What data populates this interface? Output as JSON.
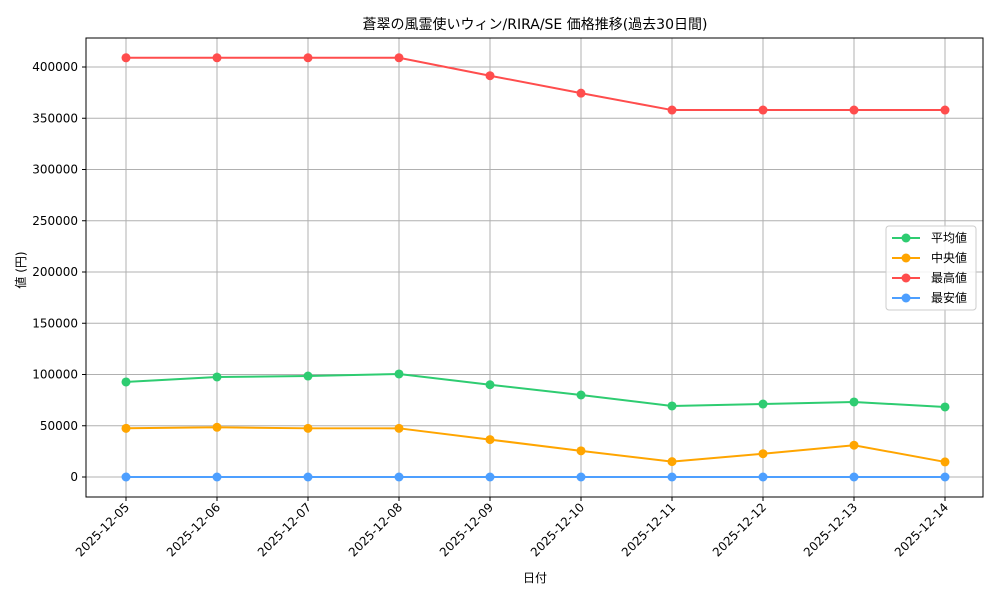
{
  "chart_data": {
    "type": "line",
    "title": "蒼翠の風霊使いウィン/RIRA/SE 価格推移(過去30日間)",
    "xlabel": "日付",
    "ylabel": "値 (円)",
    "categories": [
      "2025-12-05",
      "2025-12-06",
      "2025-12-07",
      "2025-12-08",
      "2025-12-09",
      "2025-12-10",
      "2025-12-11",
      "2025-12-12",
      "2025-12-13",
      "2025-12-14"
    ],
    "series": [
      {
        "name": "平均値",
        "color": "#2ecc71",
        "values": [
          92700,
          97600,
          98500,
          100500,
          90000,
          80000,
          69300,
          71200,
          73200,
          68300
        ]
      },
      {
        "name": "中央値",
        "color": "#ffa500",
        "values": [
          47500,
          48500,
          47500,
          47500,
          36500,
          25500,
          15000,
          22700,
          31000,
          14700
        ]
      },
      {
        "name": "最高値",
        "color": "#ff4d4d",
        "values": [
          409000,
          409000,
          409000,
          409000,
          391500,
          374500,
          358000,
          358000,
          358000,
          358000
        ]
      },
      {
        "name": "最安値",
        "color": "#4d9fff",
        "values": [
          0,
          0,
          0,
          0,
          0,
          0,
          0,
          0,
          0,
          0
        ]
      }
    ],
    "yticks": [
      0,
      50000,
      100000,
      150000,
      200000,
      250000,
      300000,
      350000,
      400000
    ],
    "ylim": [
      -20000,
      428000
    ],
    "grid": true,
    "legend_position": "center right"
  }
}
